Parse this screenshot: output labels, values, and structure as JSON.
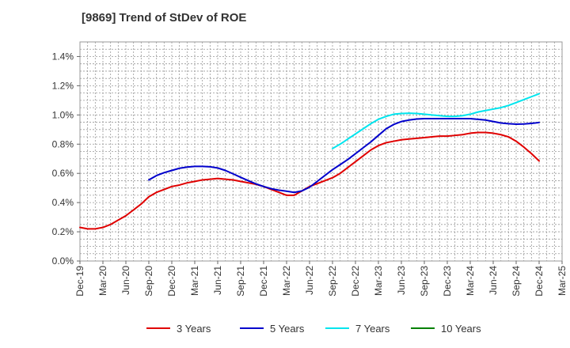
{
  "chart_data": {
    "type": "line",
    "title": "[9869]  Trend of StDev of ROE",
    "xlabel": "",
    "ylabel": "",
    "x_ticks": [
      "Dec-19",
      "Mar-20",
      "Jun-20",
      "Sep-20",
      "Dec-20",
      "Mar-21",
      "Jun-21",
      "Sep-21",
      "Dec-21",
      "Mar-22",
      "Jun-22",
      "Sep-22",
      "Dec-22",
      "Mar-23",
      "Jun-23",
      "Sep-23",
      "Dec-23",
      "Mar-24",
      "Jun-24",
      "Sep-24",
      "Dec-24",
      "Mar-25"
    ],
    "y_ticks": [
      "0.0%",
      "0.2%",
      "0.4%",
      "0.6%",
      "0.8%",
      "1.0%",
      "1.2%",
      "1.4%"
    ],
    "ylim": [
      0,
      1.5
    ],
    "y_unit": "%",
    "grid": true,
    "legend_position": "bottom",
    "series": [
      {
        "name": "3 Years",
        "color": "#e00000",
        "values": [
          [
            "Dec-19",
            0.23
          ],
          [
            "Jan-20",
            0.22
          ],
          [
            "Feb-20",
            0.22
          ],
          [
            "Mar-20",
            0.23
          ],
          [
            "Apr-20",
            0.25
          ],
          [
            "May-20",
            0.28
          ],
          [
            "Jun-20",
            0.31
          ],
          [
            "Jul-20",
            0.35
          ],
          [
            "Aug-20",
            0.39
          ],
          [
            "Sep-20",
            0.44
          ],
          [
            "Oct-20",
            0.47
          ],
          [
            "Nov-20",
            0.49
          ],
          [
            "Dec-20",
            0.51
          ],
          [
            "Jan-21",
            0.52
          ],
          [
            "Feb-21",
            0.535
          ],
          [
            "Mar-21",
            0.545
          ],
          [
            "Apr-21",
            0.555
          ],
          [
            "May-21",
            0.56
          ],
          [
            "Jun-21",
            0.565
          ],
          [
            "Jul-21",
            0.56
          ],
          [
            "Aug-21",
            0.555
          ],
          [
            "Sep-21",
            0.545
          ],
          [
            "Oct-21",
            0.535
          ],
          [
            "Nov-21",
            0.525
          ],
          [
            "Dec-21",
            0.51
          ],
          [
            "Jan-22",
            0.49
          ],
          [
            "Feb-22",
            0.47
          ],
          [
            "Mar-22",
            0.45
          ],
          [
            "Apr-22",
            0.45
          ],
          [
            "May-22",
            0.48
          ],
          [
            "Jun-22",
            0.51
          ],
          [
            "Jul-22",
            0.53
          ],
          [
            "Aug-22",
            0.55
          ],
          [
            "Sep-22",
            0.57
          ],
          [
            "Oct-22",
            0.6
          ],
          [
            "Nov-22",
            0.64
          ],
          [
            "Dec-22",
            0.68
          ],
          [
            "Jan-23",
            0.72
          ],
          [
            "Feb-23",
            0.76
          ],
          [
            "Mar-23",
            0.79
          ],
          [
            "Apr-23",
            0.81
          ],
          [
            "May-23",
            0.82
          ],
          [
            "Jun-23",
            0.83
          ],
          [
            "Jul-23",
            0.835
          ],
          [
            "Aug-23",
            0.84
          ],
          [
            "Sep-23",
            0.845
          ],
          [
            "Oct-23",
            0.85
          ],
          [
            "Nov-23",
            0.855
          ],
          [
            "Dec-23",
            0.855
          ],
          [
            "Jan-24",
            0.86
          ],
          [
            "Feb-24",
            0.865
          ],
          [
            "Mar-24",
            0.875
          ],
          [
            "Apr-24",
            0.88
          ],
          [
            "May-24",
            0.88
          ],
          [
            "Jun-24",
            0.875
          ],
          [
            "Jul-24",
            0.865
          ],
          [
            "Aug-24",
            0.85
          ],
          [
            "Sep-24",
            0.82
          ],
          [
            "Oct-24",
            0.78
          ],
          [
            "Nov-24",
            0.735
          ],
          [
            "Dec-24",
            0.685
          ]
        ]
      },
      {
        "name": "5 Years",
        "color": "#0000cc",
        "values": [
          [
            "Sep-20",
            0.555
          ],
          [
            "Oct-20",
            0.585
          ],
          [
            "Nov-20",
            0.605
          ],
          [
            "Dec-20",
            0.62
          ],
          [
            "Jan-21",
            0.635
          ],
          [
            "Feb-21",
            0.643
          ],
          [
            "Mar-21",
            0.648
          ],
          [
            "Apr-21",
            0.648
          ],
          [
            "May-21",
            0.645
          ],
          [
            "Jun-21",
            0.637
          ],
          [
            "Jul-21",
            0.62
          ],
          [
            "Aug-21",
            0.597
          ],
          [
            "Sep-21",
            0.573
          ],
          [
            "Oct-21",
            0.55
          ],
          [
            "Nov-21",
            0.528
          ],
          [
            "Dec-21",
            0.51
          ],
          [
            "Jan-22",
            0.495
          ],
          [
            "Feb-22",
            0.485
          ],
          [
            "Mar-22",
            0.478
          ],
          [
            "Apr-22",
            0.47
          ],
          [
            "May-22",
            0.48
          ],
          [
            "Jun-22",
            0.505
          ],
          [
            "Jul-22",
            0.545
          ],
          [
            "Aug-22",
            0.585
          ],
          [
            "Sep-22",
            0.625
          ],
          [
            "Oct-22",
            0.66
          ],
          [
            "Nov-22",
            0.695
          ],
          [
            "Dec-22",
            0.735
          ],
          [
            "Jan-23",
            0.775
          ],
          [
            "Feb-23",
            0.815
          ],
          [
            "Mar-23",
            0.86
          ],
          [
            "Apr-23",
            0.905
          ],
          [
            "May-23",
            0.935
          ],
          [
            "Jun-23",
            0.955
          ],
          [
            "Jul-23",
            0.965
          ],
          [
            "Aug-23",
            0.972
          ],
          [
            "Sep-23",
            0.975
          ],
          [
            "Oct-23",
            0.975
          ],
          [
            "Nov-23",
            0.975
          ],
          [
            "Dec-23",
            0.975
          ],
          [
            "Jan-24",
            0.975
          ],
          [
            "Feb-24",
            0.975
          ],
          [
            "Mar-24",
            0.975
          ],
          [
            "Apr-24",
            0.97
          ],
          [
            "May-24",
            0.965
          ],
          [
            "Jun-24",
            0.955
          ],
          [
            "Jul-24",
            0.945
          ],
          [
            "Aug-24",
            0.94
          ],
          [
            "Sep-24",
            0.937
          ],
          [
            "Oct-24",
            0.938
          ],
          [
            "Nov-24",
            0.942
          ],
          [
            "Dec-24",
            0.948
          ]
        ]
      },
      {
        "name": "7 Years",
        "color": "#00e5ee",
        "values": [
          [
            "Sep-22",
            0.77
          ],
          [
            "Oct-22",
            0.8
          ],
          [
            "Nov-22",
            0.835
          ],
          [
            "Dec-22",
            0.87
          ],
          [
            "Jan-23",
            0.905
          ],
          [
            "Feb-23",
            0.94
          ],
          [
            "Mar-23",
            0.97
          ],
          [
            "Apr-23",
            0.99
          ],
          [
            "May-23",
            1.005
          ],
          [
            "Jun-23",
            1.01
          ],
          [
            "Jul-23",
            1.012
          ],
          [
            "Aug-23",
            1.01
          ],
          [
            "Sep-23",
            1.005
          ],
          [
            "Oct-23",
            1.0
          ],
          [
            "Nov-23",
            0.995
          ],
          [
            "Dec-23",
            0.99
          ],
          [
            "Jan-24",
            0.99
          ],
          [
            "Feb-24",
            0.995
          ],
          [
            "Mar-24",
            1.005
          ],
          [
            "Apr-24",
            1.02
          ],
          [
            "May-24",
            1.03
          ],
          [
            "Jun-24",
            1.04
          ],
          [
            "Jul-24",
            1.05
          ],
          [
            "Aug-24",
            1.065
          ],
          [
            "Sep-24",
            1.085
          ],
          [
            "Oct-24",
            1.105
          ],
          [
            "Nov-24",
            1.125
          ],
          [
            "Dec-24",
            1.145
          ]
        ]
      },
      {
        "name": "10 Years",
        "color": "#008000",
        "values": []
      }
    ]
  }
}
